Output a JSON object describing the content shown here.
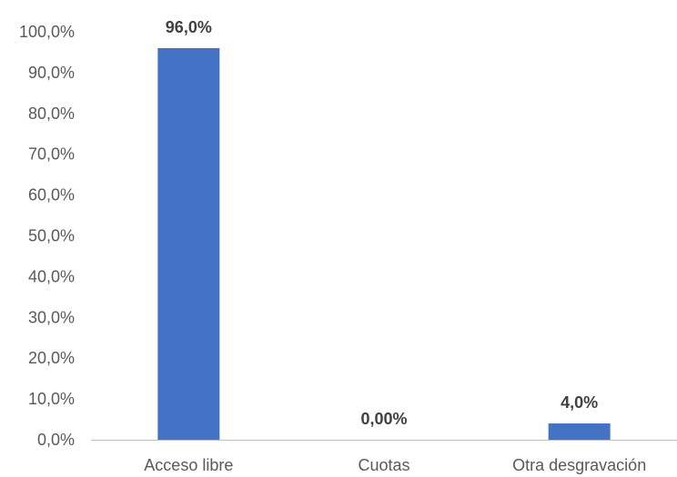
{
  "chart_data": {
    "type": "bar",
    "categories": [
      "Acceso libre",
      "Cuotas",
      "Otra desgravación"
    ],
    "values": [
      96.0,
      0.0,
      4.0
    ],
    "data_labels": [
      "96,0%",
      "0,00%",
      "4,0%"
    ],
    "y_ticks": [
      "0,0%",
      "10,0%",
      "20,0%",
      "30,0%",
      "40,0%",
      "50,0%",
      "60,0%",
      "70,0%",
      "80,0%",
      "90,0%",
      "100,0%"
    ],
    "ylim": [
      0,
      100
    ],
    "grid": false,
    "bar_color": "#4472C4",
    "axis_color": "#BFBFBF"
  }
}
